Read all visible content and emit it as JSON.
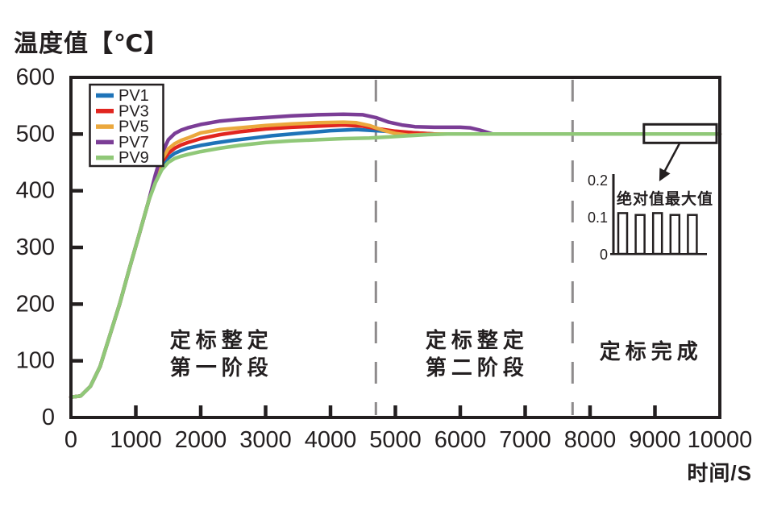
{
  "page": {
    "background": "#ffffff"
  },
  "chart_data": {
    "type": "line",
    "title": "温度值【℃】",
    "xlabel": "时间/S",
    "ylabel": "温度值【℃】",
    "xlim": [
      0,
      10000
    ],
    "ylim": [
      0,
      600
    ],
    "xticks": [
      0,
      1000,
      2000,
      3000,
      4000,
      5000,
      6000,
      7000,
      8000,
      9000,
      10000
    ],
    "yticks": [
      0,
      100,
      200,
      300,
      400,
      500,
      600
    ],
    "grid": false,
    "axis_color": "#231f20",
    "dashed_line_color": "#8e8b8c",
    "legend": {
      "position": "top-left",
      "entries": [
        "PV1",
        "PV3",
        "PV5",
        "PV7",
        "PV9"
      ]
    },
    "series": [
      {
        "name": "PV1",
        "color": "#1e73b8",
        "points": [
          [
            0,
            36
          ],
          [
            150,
            38
          ],
          [
            300,
            55
          ],
          [
            450,
            90
          ],
          [
            600,
            145
          ],
          [
            750,
            200
          ],
          [
            900,
            262
          ],
          [
            1050,
            322
          ],
          [
            1200,
            383
          ],
          [
            1300,
            419
          ],
          [
            1400,
            444
          ],
          [
            1500,
            458
          ],
          [
            1600,
            466
          ],
          [
            1700,
            471
          ],
          [
            1800,
            475
          ],
          [
            2000,
            480
          ],
          [
            2200,
            484
          ],
          [
            2500,
            489
          ],
          [
            2800,
            493
          ],
          [
            3100,
            497
          ],
          [
            3400,
            500
          ],
          [
            3700,
            503
          ],
          [
            4000,
            506
          ],
          [
            4400,
            508
          ],
          [
            4700,
            506
          ],
          [
            5000,
            504
          ],
          [
            5300,
            502
          ],
          [
            5600,
            500
          ],
          [
            6000,
            500
          ],
          [
            7000,
            500
          ],
          [
            8000,
            500
          ],
          [
            9000,
            500
          ],
          [
            10000,
            500
          ]
        ]
      },
      {
        "name": "PV3",
        "color": "#e1251f",
        "points": [
          [
            0,
            36
          ],
          [
            150,
            38
          ],
          [
            300,
            55
          ],
          [
            450,
            90
          ],
          [
            600,
            145
          ],
          [
            750,
            200
          ],
          [
            900,
            262
          ],
          [
            1050,
            322
          ],
          [
            1200,
            383
          ],
          [
            1300,
            422
          ],
          [
            1400,
            450
          ],
          [
            1500,
            466
          ],
          [
            1600,
            475
          ],
          [
            1700,
            481
          ],
          [
            1800,
            485
          ],
          [
            2000,
            492
          ],
          [
            2300,
            499
          ],
          [
            2600,
            504
          ],
          [
            3000,
            509
          ],
          [
            3400,
            512
          ],
          [
            3800,
            514
          ],
          [
            4200,
            516
          ],
          [
            4500,
            514
          ],
          [
            4700,
            510
          ],
          [
            5000,
            505
          ],
          [
            5300,
            502
          ],
          [
            5600,
            500
          ],
          [
            6000,
            500
          ],
          [
            7000,
            500
          ],
          [
            8000,
            500
          ],
          [
            9000,
            500
          ],
          [
            10000,
            500
          ]
        ]
      },
      {
        "name": "PV5",
        "color": "#eba83d",
        "points": [
          [
            0,
            36
          ],
          [
            150,
            38
          ],
          [
            300,
            55
          ],
          [
            450,
            90
          ],
          [
            600,
            145
          ],
          [
            750,
            200
          ],
          [
            900,
            262
          ],
          [
            1050,
            322
          ],
          [
            1200,
            383
          ],
          [
            1300,
            424
          ],
          [
            1400,
            455
          ],
          [
            1500,
            474
          ],
          [
            1600,
            483
          ],
          [
            1700,
            489
          ],
          [
            1800,
            493
          ],
          [
            2000,
            502
          ],
          [
            2300,
            508
          ],
          [
            2600,
            511
          ],
          [
            3000,
            515
          ],
          [
            3400,
            518
          ],
          [
            3800,
            520
          ],
          [
            4200,
            521
          ],
          [
            4400,
            520
          ],
          [
            4600,
            515
          ],
          [
            4800,
            507
          ],
          [
            5000,
            501
          ],
          [
            5200,
            498
          ],
          [
            5400,
            499
          ],
          [
            5700,
            500
          ],
          [
            6000,
            500
          ],
          [
            7000,
            500
          ],
          [
            8000,
            500
          ],
          [
            9000,
            500
          ],
          [
            10000,
            500
          ]
        ]
      },
      {
        "name": "PV7",
        "color": "#7b3d96",
        "points": [
          [
            0,
            36
          ],
          [
            150,
            38
          ],
          [
            300,
            55
          ],
          [
            450,
            90
          ],
          [
            600,
            145
          ],
          [
            750,
            200
          ],
          [
            900,
            262
          ],
          [
            1050,
            322
          ],
          [
            1200,
            383
          ],
          [
            1300,
            428
          ],
          [
            1400,
            465
          ],
          [
            1500,
            490
          ],
          [
            1600,
            501
          ],
          [
            1700,
            507
          ],
          [
            1800,
            511
          ],
          [
            2000,
            517
          ],
          [
            2300,
            523
          ],
          [
            2600,
            526
          ],
          [
            3000,
            529
          ],
          [
            3400,
            532
          ],
          [
            3800,
            534
          ],
          [
            4200,
            535
          ],
          [
            4500,
            534
          ],
          [
            4700,
            529
          ],
          [
            4900,
            521
          ],
          [
            5100,
            516
          ],
          [
            5300,
            513
          ],
          [
            5600,
            512
          ],
          [
            6000,
            512
          ],
          [
            6150,
            511
          ],
          [
            6300,
            507
          ],
          [
            6500,
            500
          ],
          [
            6800,
            500
          ],
          [
            7500,
            500
          ],
          [
            8000,
            500
          ],
          [
            9000,
            500
          ],
          [
            10000,
            500
          ]
        ]
      },
      {
        "name": "PV9",
        "color": "#90c878",
        "points": [
          [
            0,
            36
          ],
          [
            150,
            38
          ],
          [
            300,
            55
          ],
          [
            450,
            90
          ],
          [
            600,
            145
          ],
          [
            750,
            200
          ],
          [
            900,
            262
          ],
          [
            1050,
            322
          ],
          [
            1200,
            383
          ],
          [
            1300,
            414
          ],
          [
            1400,
            437
          ],
          [
            1500,
            450
          ],
          [
            1600,
            457
          ],
          [
            1700,
            461
          ],
          [
            1800,
            464
          ],
          [
            2000,
            469
          ],
          [
            2300,
            475
          ],
          [
            2600,
            480
          ],
          [
            3000,
            485
          ],
          [
            3400,
            488
          ],
          [
            3800,
            490
          ],
          [
            4200,
            492
          ],
          [
            4600,
            493
          ],
          [
            4900,
            495
          ],
          [
            5200,
            497
          ],
          [
            5500,
            499
          ],
          [
            5800,
            500
          ],
          [
            6000,
            500
          ],
          [
            7000,
            500
          ],
          [
            8000,
            500
          ],
          [
            9000,
            500
          ],
          [
            10000,
            500
          ]
        ]
      }
    ],
    "phase_boundaries_x": [
      4700,
      7730
    ],
    "phases": [
      {
        "lines": [
          "定标整定",
          "第一阶段"
        ],
        "center_x": 2320
      },
      {
        "lines": [
          "定标整定",
          "第二阶段"
        ],
        "center_x": 6260
      },
      {
        "lines": [
          "定标完成"
        ],
        "center_x": 8940
      }
    ],
    "inset": {
      "yticks": [
        "0.2",
        "0.1",
        "0"
      ],
      "ymax": 0.2,
      "bar_values": [
        0.11,
        0.105,
        0.11,
        0.105,
        0.105
      ],
      "annotation": "绝对值最大值"
    },
    "highlight": {
      "x_range": [
        8830,
        9950
      ],
      "y_value": 500
    }
  }
}
